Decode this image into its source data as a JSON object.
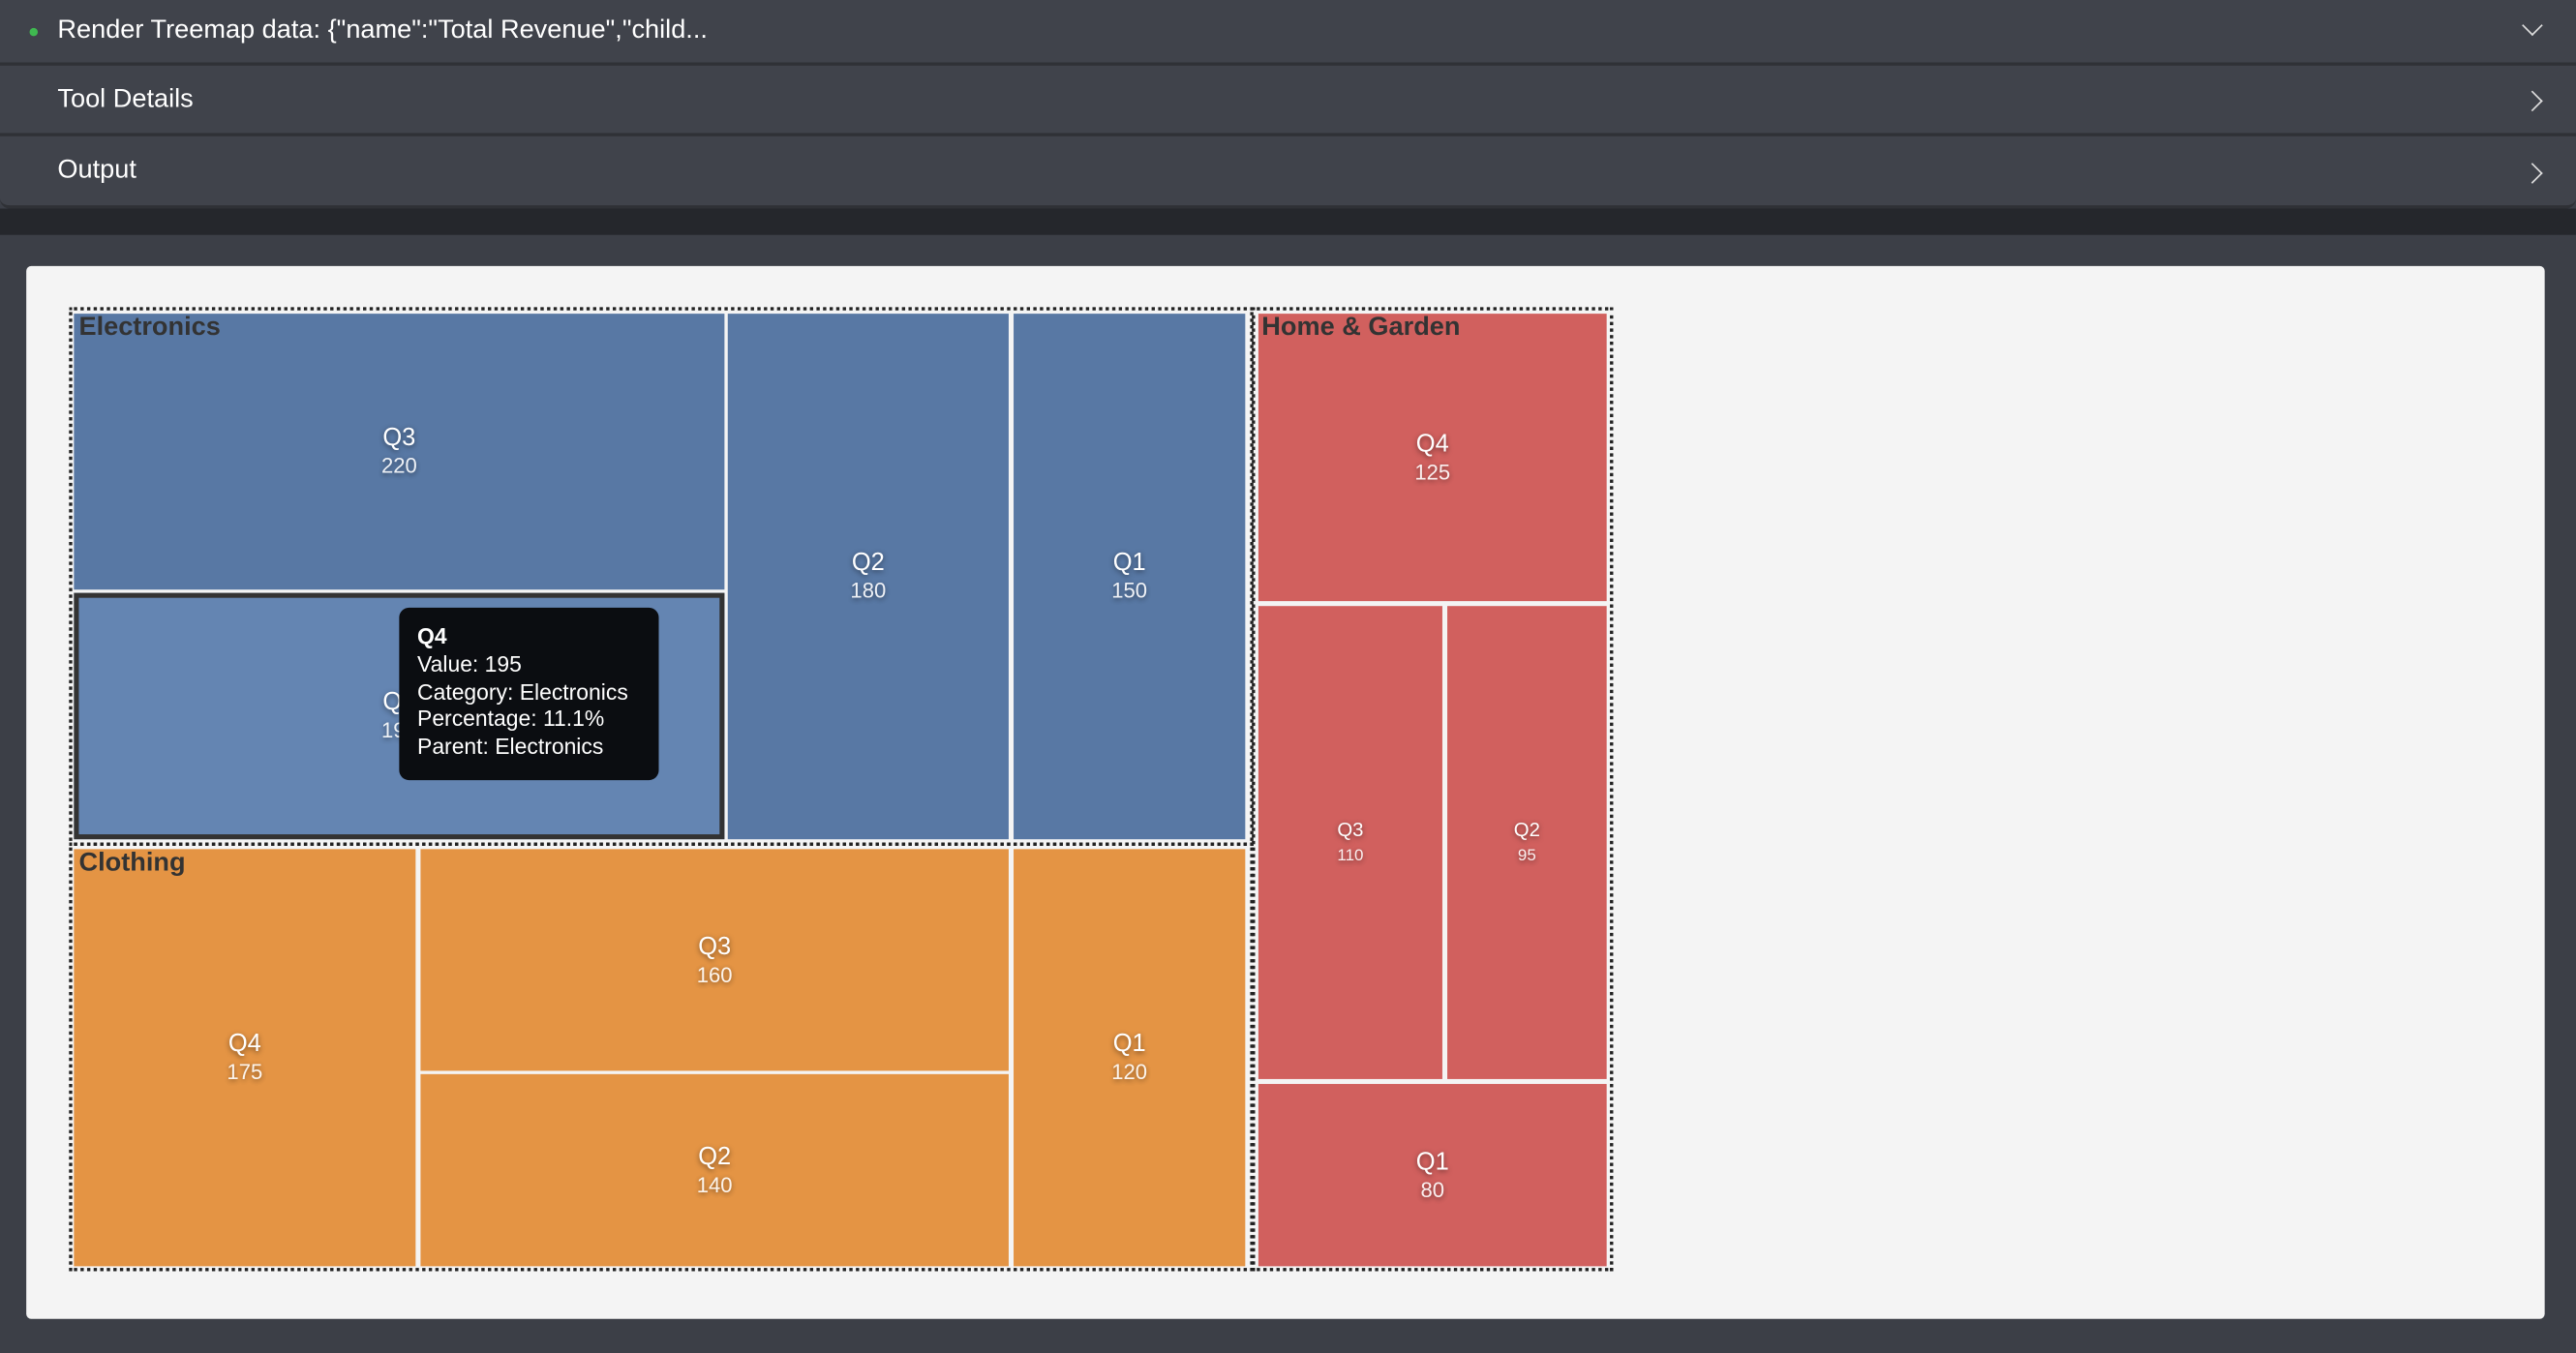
{
  "header": {
    "title": "Render Treemap data: {\"name\":\"Total Revenue\",\"child...",
    "status_color": "#3fb950",
    "rows": [
      {
        "label": "Tool Details"
      },
      {
        "label": "Output"
      }
    ]
  },
  "chart_data": {
    "type": "treemap",
    "root": "Total Revenue",
    "groups": [
      {
        "name": "Electronics",
        "color": "#5878a4",
        "children": [
          {
            "name": "Q3",
            "value": 220
          },
          {
            "name": "Q4",
            "value": 195
          },
          {
            "name": "Q2",
            "value": 180
          },
          {
            "name": "Q1",
            "value": 150
          }
        ]
      },
      {
        "name": "Clothing",
        "color": "#e49444",
        "children": [
          {
            "name": "Q4",
            "value": 175
          },
          {
            "name": "Q3",
            "value": 160
          },
          {
            "name": "Q2",
            "value": 140
          },
          {
            "name": "Q1",
            "value": 120
          }
        ]
      },
      {
        "name": "Home & Garden",
        "color": "#d1605e",
        "children": [
          {
            "name": "Q4",
            "value": 125
          },
          {
            "name": "Q3",
            "value": 110
          },
          {
            "name": "Q2",
            "value": 95
          },
          {
            "name": "Q1",
            "value": 80
          }
        ]
      }
    ],
    "hover_color": "#6485b2",
    "tooltip": {
      "title": "Q4",
      "lines": [
        "Value: 195",
        "Category: Electronics",
        "Percentage: 11.1%",
        "Parent: Electronics"
      ]
    }
  }
}
